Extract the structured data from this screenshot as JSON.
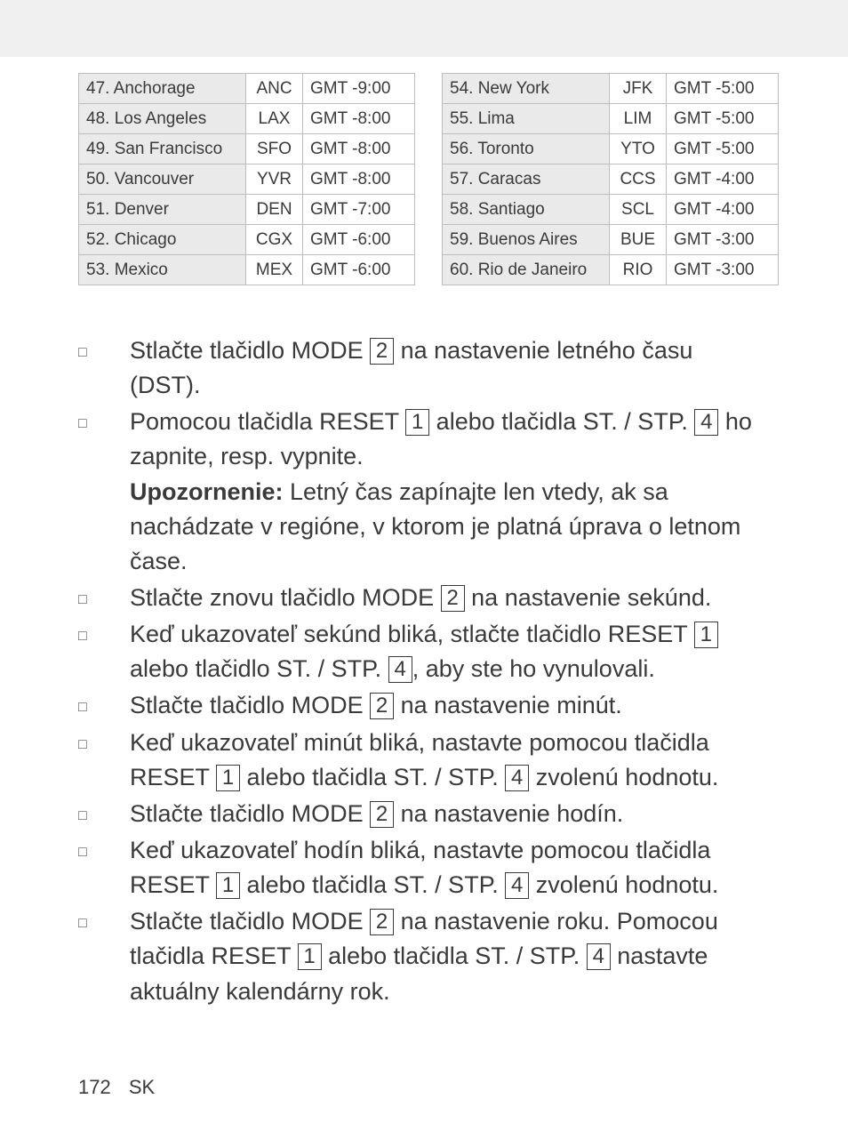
{
  "top_bar_color": "#f0f0f0",
  "page_bg": "#ffffff",
  "text_color": "#3a3a3a",
  "border_color": "#bdbdbd",
  "city_col_bg": "#eaeaea",
  "table_font_size": 19,
  "instr_font_size": 27,
  "table_left": {
    "rows": [
      {
        "city": "47. Anchorage",
        "code": "ANC",
        "gmt": "GMT -9:00"
      },
      {
        "city": "48. Los Angeles",
        "code": "LAX",
        "gmt": "GMT -8:00"
      },
      {
        "city": "49. San Francisco",
        "code": "SFO",
        "gmt": "GMT -8:00"
      },
      {
        "city": "50. Vancouver",
        "code": "YVR",
        "gmt": "GMT -8:00"
      },
      {
        "city": "51. Denver",
        "code": "DEN",
        "gmt": "GMT -7:00"
      },
      {
        "city": "52. Chicago",
        "code": "CGX",
        "gmt": "GMT -6:00"
      },
      {
        "city": "53. Mexico",
        "code": "MEX",
        "gmt": "GMT -6:00"
      }
    ]
  },
  "table_right": {
    "rows": [
      {
        "city": "54. New York",
        "code": "JFK",
        "gmt": "GMT -5:00"
      },
      {
        "city": "55. Lima",
        "code": "LIM",
        "gmt": "GMT -5:00"
      },
      {
        "city": "56. Toronto",
        "code": "YTO",
        "gmt": "GMT -5:00"
      },
      {
        "city": "57. Caracas",
        "code": "CCS",
        "gmt": "GMT -4:00"
      },
      {
        "city": "58. Santiago",
        "code": "SCL",
        "gmt": "GMT -4:00"
      },
      {
        "city": "59. Buenos Aires",
        "code": "BUE",
        "gmt": "GMT -3:00"
      },
      {
        "city": "60. Rio de Janeiro",
        "code": "RIO",
        "gmt": "GMT -3:00"
      }
    ]
  },
  "keys": {
    "k1": "1",
    "k2": "2",
    "k4": "4"
  },
  "labels": {
    "mode": "MODE",
    "reset": "RESET",
    "ststp": "ST. / STP.",
    "warn": "Upozornenie:"
  },
  "instructions": [
    {
      "segments": [
        {
          "t": "Stlačte tlačidlo "
        },
        {
          "t": "MODE",
          "ref": "labels.mode"
        },
        {
          "t": " "
        },
        {
          "key": "keys.k2"
        },
        {
          "t": " na nastavenie letného času (DST)."
        }
      ]
    },
    {
      "segments": [
        {
          "t": "Pomocou tlačidla "
        },
        {
          "t": "RESET",
          "ref": "labels.reset"
        },
        {
          "t": " "
        },
        {
          "key": "keys.k1"
        },
        {
          "t": " alebo tlačidla "
        },
        {
          "t": "ST. / STP.",
          "ref": "labels.ststp"
        },
        {
          "t": " "
        },
        {
          "key": "keys.k4"
        },
        {
          "t": " ho zapnite, resp. vypnite."
        }
      ],
      "note_segments": [
        {
          "bold_ref": "labels.warn"
        },
        {
          "t": " Letný čas zapínajte len vtedy, ak sa nachádzate v regióne, v ktorom je platná úprava o letnom čase."
        }
      ]
    },
    {
      "segments": [
        {
          "t": "Stlačte znovu tlačidlo "
        },
        {
          "t": "MODE",
          "ref": "labels.mode"
        },
        {
          "t": " "
        },
        {
          "key": "keys.k2"
        },
        {
          "t": " na nastavenie sekúnd."
        }
      ]
    },
    {
      "segments": [
        {
          "t": "Keď ukazovateľ sekúnd bliká, stlačte tlačidlo "
        },
        {
          "t": "RESET",
          "ref": "labels.reset"
        },
        {
          "t": " "
        },
        {
          "key": "keys.k1"
        },
        {
          "t": " alebo tlačidlo "
        },
        {
          "t": "ST. / STP.",
          "ref": "labels.ststp"
        },
        {
          "t": " "
        },
        {
          "key": "keys.k4"
        },
        {
          "t": ", aby ste ho vynulovali."
        }
      ]
    },
    {
      "segments": [
        {
          "t": "Stlačte tlačidlo "
        },
        {
          "t": "MODE",
          "ref": "labels.mode"
        },
        {
          "t": " "
        },
        {
          "key": "keys.k2"
        },
        {
          "t": " na nastavenie minút."
        }
      ]
    },
    {
      "segments": [
        {
          "t": "Keď ukazovateľ minút bliká, nastavte pomocou tlačidla "
        },
        {
          "t": "RESET",
          "ref": "labels.reset"
        },
        {
          "t": " "
        },
        {
          "key": "keys.k1"
        },
        {
          "t": " alebo tlačidla "
        },
        {
          "t": "ST. / STP.",
          "ref": "labels.ststp"
        },
        {
          "t": " "
        },
        {
          "key": "keys.k4"
        },
        {
          "t": " zvolenú hodnotu."
        }
      ]
    },
    {
      "segments": [
        {
          "t": "Stlačte tlačidlo "
        },
        {
          "t": "MODE",
          "ref": "labels.mode"
        },
        {
          "t": " "
        },
        {
          "key": "keys.k2"
        },
        {
          "t": " na nastavenie hodín."
        }
      ]
    },
    {
      "segments": [
        {
          "t": "Keď ukazovateľ hodín bliká, nastavte pomocou tlačidla "
        },
        {
          "t": "RESET",
          "ref": "labels.reset"
        },
        {
          "t": " "
        },
        {
          "key": "keys.k1"
        },
        {
          "t": " alebo tlačidla "
        },
        {
          "t": "ST. / STP.",
          "ref": "labels.ststp"
        },
        {
          "t": " "
        },
        {
          "key": "keys.k4"
        },
        {
          "t": " zvolenú hodnotu."
        }
      ]
    },
    {
      "segments": [
        {
          "t": "Stlačte tlačidlo "
        },
        {
          "t": "MODE",
          "ref": "labels.mode"
        },
        {
          "t": " "
        },
        {
          "key": "keys.k2"
        },
        {
          "t": " na nastavenie roku. Pomocou tlačidla "
        },
        {
          "t": "RESET",
          "ref": "labels.reset"
        },
        {
          "t": " "
        },
        {
          "key": "keys.k1"
        },
        {
          "t": " alebo tlačidla "
        },
        {
          "t": "ST. / STP.",
          "ref": "labels.ststp"
        },
        {
          "t": " "
        },
        {
          "key": "keys.k4"
        },
        {
          "t": " nastavte aktuálny kalendárny rok."
        }
      ]
    }
  ],
  "footer": {
    "page": "172",
    "lang": "SK"
  }
}
